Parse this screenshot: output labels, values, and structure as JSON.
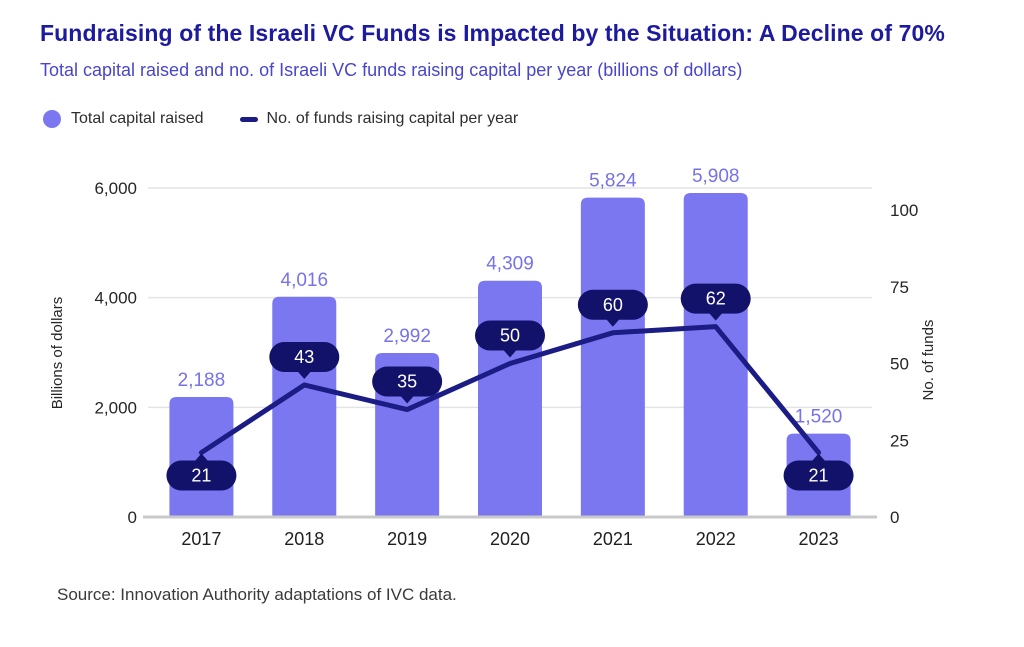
{
  "title": "Fundraising of the Israeli VC Funds is Impacted by the Situation: A Decline of 70%",
  "subtitle": "Total capital raised and no. of Israeli VC funds raising capital per year (billions of dollars)",
  "legend": {
    "items": [
      {
        "label": "Total capital raised",
        "marker": "circle"
      },
      {
        "label": "No. of funds raising capital per year",
        "marker": "dash"
      }
    ]
  },
  "source": "Source: Innovation Authority adaptations of IVC data.",
  "colors": {
    "title": "#1c1a9e",
    "subtitle": "#4946c9",
    "bar": "#7b77f0",
    "bar_label": "#7672ea",
    "line": "#1c1c85",
    "pill": "#12126b",
    "pill_text": "#ffffff",
    "grid": "#e4e4e4",
    "baseline": "#c9c9c9",
    "axis_text": "#262626",
    "category_text": "#1f1f1f",
    "source_text": "#3a3a3a",
    "background": "#ffffff"
  },
  "chart_data": {
    "type": "bar",
    "subtype": "bar+line dual-axis combo",
    "categories": [
      "2017",
      "2018",
      "2019",
      "2020",
      "2021",
      "2022",
      "2023"
    ],
    "series": [
      {
        "name": "Total capital raised",
        "type": "bar",
        "axis": "left",
        "values": [
          2188,
          4016,
          2992,
          4309,
          5824,
          5908,
          1520
        ],
        "labels": [
          "2,188",
          "4,016",
          "2,992",
          "4,309",
          "5,824",
          "5,908",
          "1,520"
        ]
      },
      {
        "name": "No. of funds raising capital per year",
        "type": "line",
        "axis": "right",
        "values": [
          21,
          43,
          35,
          50,
          60,
          62,
          21
        ],
        "labels": [
          "21",
          "43",
          "35",
          "50",
          "60",
          "62",
          "21"
        ],
        "label_placement": [
          "below",
          "above",
          "above",
          "above",
          "above",
          "above",
          "below"
        ]
      }
    ],
    "left_axis": {
      "title": "Billions of dollars",
      "ticks": [
        "0",
        "2,000",
        "4,000",
        "6,000"
      ],
      "tick_values": [
        0,
        2000,
        4000,
        6000
      ],
      "range": [
        0,
        6000
      ]
    },
    "right_axis": {
      "title": "No. of funds",
      "ticks": [
        "0",
        "25",
        "50",
        "75",
        "100"
      ],
      "tick_values": [
        0,
        25,
        50,
        75,
        100
      ],
      "range": [
        0,
        100
      ]
    },
    "grid": true,
    "legend_position": "top-left"
  }
}
